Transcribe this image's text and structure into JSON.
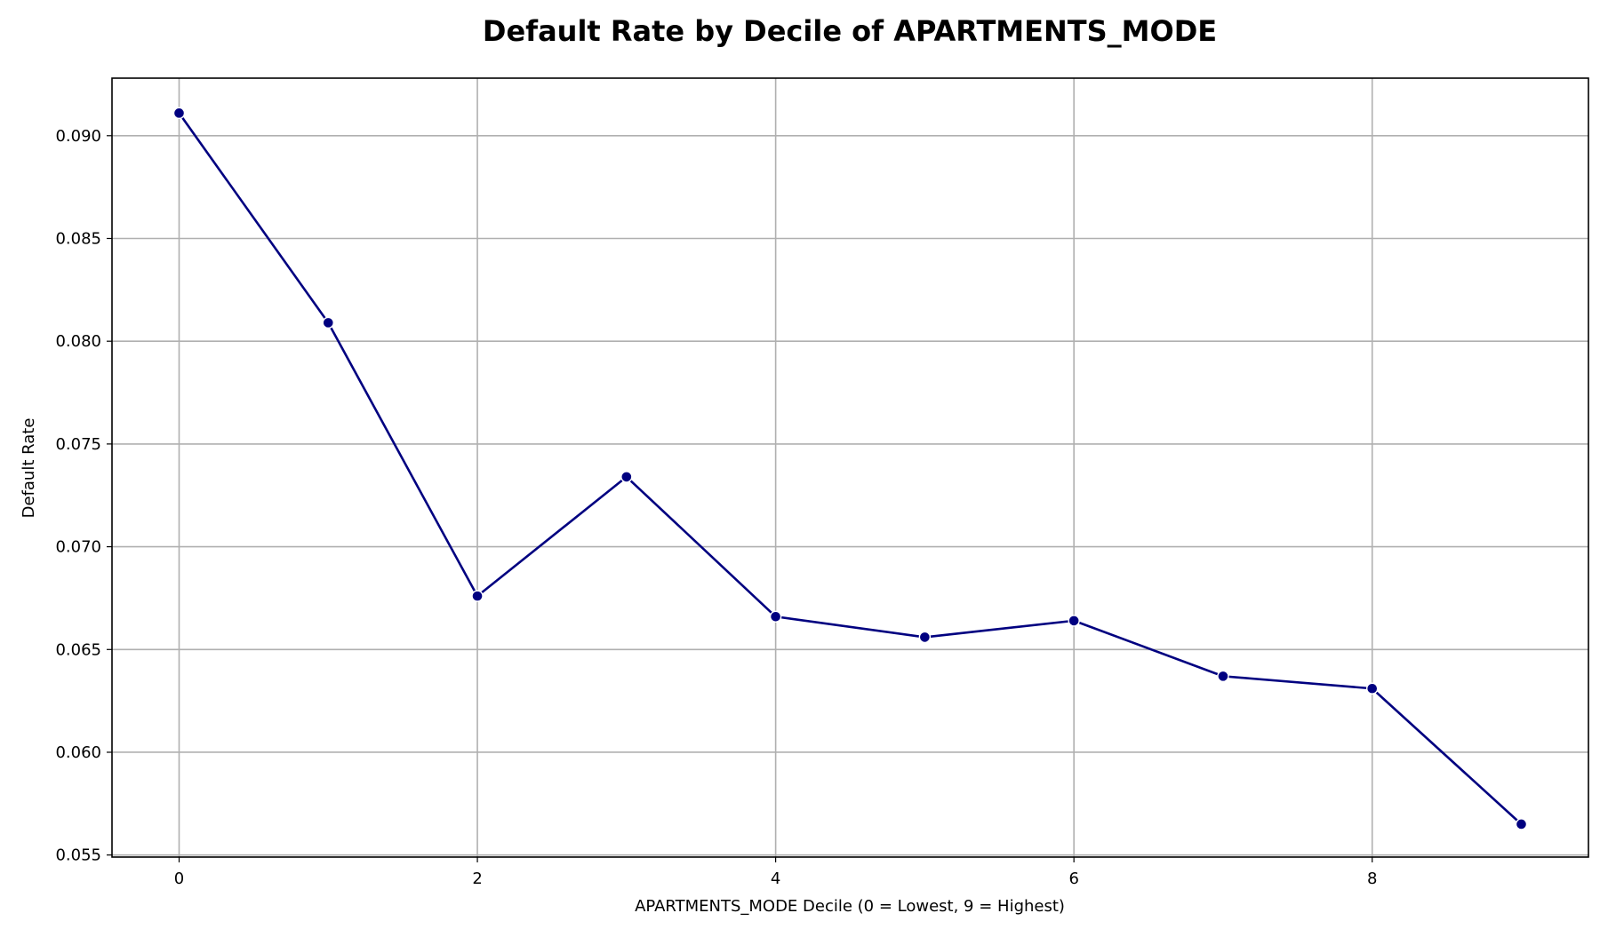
{
  "chart_data": {
    "type": "line",
    "title": "Default Rate by Decile of APARTMENTS_MODE",
    "xlabel": "APARTMENTS_MODE Decile (0 = Lowest, 9 = Highest)",
    "ylabel": "Default Rate",
    "xlim": [
      -0.45,
      9.45
    ],
    "ylim": [
      0.0549,
      0.0928
    ],
    "xticks": [
      0,
      2,
      4,
      6,
      8
    ],
    "xtick_labels": [
      "0",
      "2",
      "4",
      "6",
      "8"
    ],
    "yticks": [
      0.055,
      0.06,
      0.065,
      0.07,
      0.075,
      0.08,
      0.085,
      0.09
    ],
    "ytick_labels": [
      "0.055",
      "0.060",
      "0.065",
      "0.070",
      "0.075",
      "0.080",
      "0.085",
      "0.090"
    ],
    "grid": true,
    "series": [
      {
        "x": [
          0,
          1,
          2,
          3,
          4,
          5,
          6,
          7,
          8,
          9
        ],
        "values": [
          0.0911,
          0.0809,
          0.0676,
          0.0734,
          0.0666,
          0.0656,
          0.0664,
          0.0637,
          0.0631,
          0.0565
        ],
        "color": "#000080",
        "marker": "circle"
      }
    ]
  }
}
